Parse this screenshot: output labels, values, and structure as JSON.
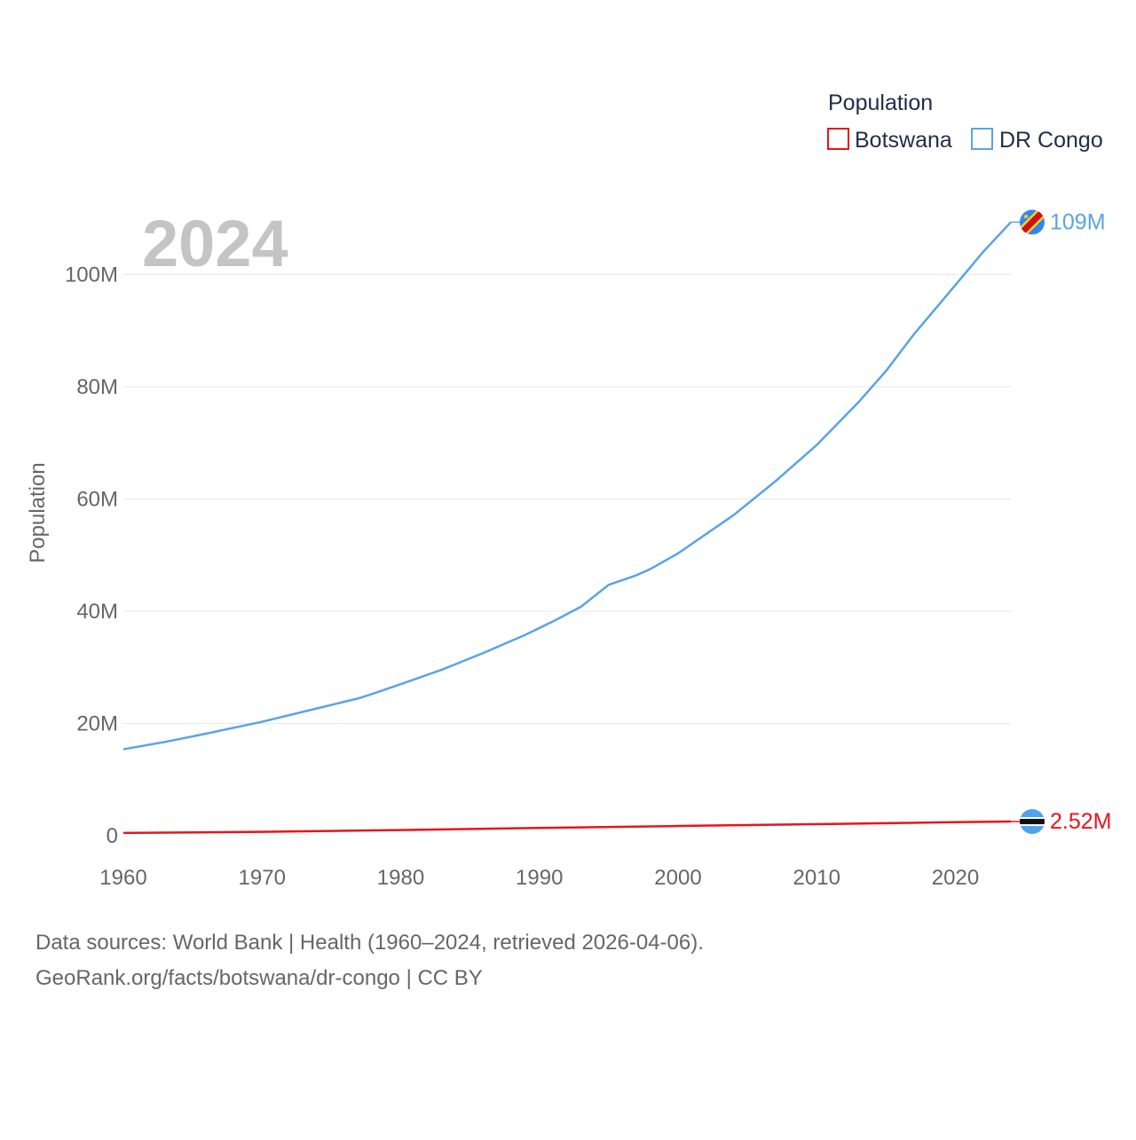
{
  "chart_data": {
    "type": "line",
    "year_label": "2024",
    "ylabel": "Population",
    "xlabel": "",
    "xlim": [
      1960,
      2024
    ],
    "ylim": [
      0,
      110000000
    ],
    "x_ticks": [
      1960,
      1970,
      1980,
      1990,
      2000,
      2010,
      2020
    ],
    "y_ticks": [
      {
        "value": 0,
        "label": "0"
      },
      {
        "value": 20000000,
        "label": "20M"
      },
      {
        "value": 40000000,
        "label": "40M"
      },
      {
        "value": 60000000,
        "label": "60M"
      },
      {
        "value": 80000000,
        "label": "80M"
      },
      {
        "value": 100000000,
        "label": "100M"
      }
    ],
    "legend": {
      "title": "Population",
      "position": "top-right"
    },
    "series": [
      {
        "name": "Botswana",
        "color": "#e8141b",
        "end_label": "2.52M",
        "flag_icon": "botswana-flag-icon",
        "points": [
          [
            1960,
            500000
          ],
          [
            1970,
            690000
          ],
          [
            1980,
            1010000
          ],
          [
            1990,
            1380000
          ],
          [
            2000,
            1730000
          ],
          [
            2010,
            2050000
          ],
          [
            2020,
            2400000
          ],
          [
            2024,
            2520000
          ]
        ]
      },
      {
        "name": "DR Congo",
        "color": "#5aa3e6",
        "end_label": "109M",
        "flag_icon": "dr-congo-flag-icon",
        "points": [
          [
            1960,
            15400000
          ],
          [
            1963,
            16700000
          ],
          [
            1966,
            18200000
          ],
          [
            1970,
            20300000
          ],
          [
            1974,
            22700000
          ],
          [
            1977,
            24500000
          ],
          [
            1978,
            25300000
          ],
          [
            1980,
            27000000
          ],
          [
            1983,
            29600000
          ],
          [
            1986,
            32600000
          ],
          [
            1989,
            35800000
          ],
          [
            1991,
            38200000
          ],
          [
            1993,
            40800000
          ],
          [
            1995,
            44700000
          ],
          [
            1997,
            46400000
          ],
          [
            1998,
            47500000
          ],
          [
            2000,
            50300000
          ],
          [
            2004,
            57100000
          ],
          [
            2007,
            63100000
          ],
          [
            2010,
            69600000
          ],
          [
            2013,
            77200000
          ],
          [
            2015,
            82800000
          ],
          [
            2017,
            89300000
          ],
          [
            2020,
            98100000
          ],
          [
            2022,
            104000000
          ],
          [
            2024,
            109300000
          ]
        ]
      }
    ]
  },
  "footer": {
    "line1": "Data sources: World Bank | Health (1960–2024, retrieved 2026-04-06).",
    "line2": "GeoRank.org/facts/botswana/dr-congo | CC BY"
  }
}
